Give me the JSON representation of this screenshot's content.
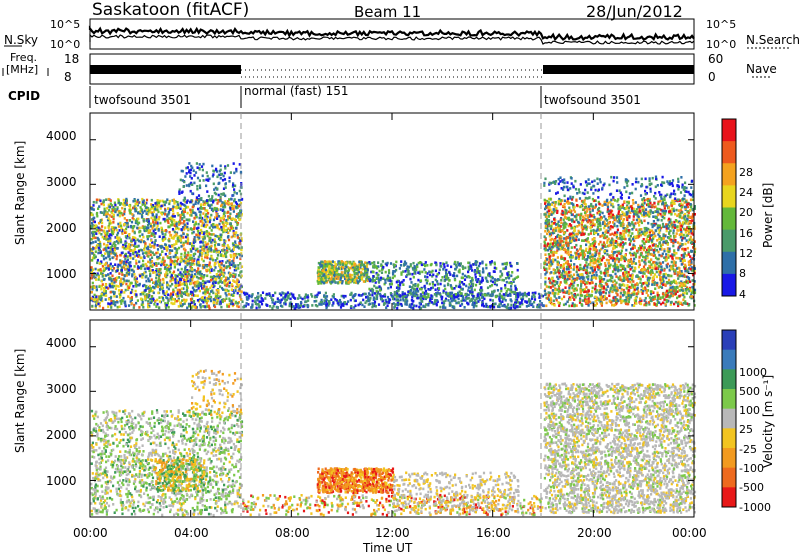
{
  "header": {
    "station": "Saskatoon (fitACF)",
    "beam": "Beam 11",
    "date": "28/Jun/2012"
  },
  "top_panels": {
    "nsky_label": "N.Sky",
    "nsky_top": "10^5",
    "nsky_bottom": "10^0",
    "nsearch_label": "N.Search",
    "nsearch_top": "10^5",
    "nsearch_bottom": "10^0",
    "freq_label": "Freq.",
    "freq_unit": "[MHz]",
    "freq_top": "18",
    "freq_bottom": "8",
    "nave_label": "Nave",
    "nave_top": "60",
    "nave_bottom": "0",
    "cpid_label": "CPID",
    "cpid_segments": [
      "twofsound 3501",
      "normal (fast) 151",
      "twofsound 3501"
    ]
  },
  "power_colorbar": {
    "label": "Power [dB]",
    "ticks": [
      "28",
      "24",
      "20",
      "16",
      "12",
      "8",
      "4"
    ],
    "colors": [
      "#e8121b",
      "#ee5a1e",
      "#f4a21f",
      "#e8d51e",
      "#63b83a",
      "#4a9a6a",
      "#2e6fa8",
      "#1919e6"
    ]
  },
  "velocity_colorbar": {
    "label": "Velocity [m s⁻¹]",
    "ticks": [
      "1000",
      "500",
      "100",
      "25",
      "-25",
      "-100",
      "-500",
      "-1000"
    ],
    "colors": [
      "#2a3fb8",
      "#3a7bbb",
      "#3c9a57",
      "#7cc94a",
      "#b8b8b8",
      "#f2c420",
      "#f29a1f",
      "#ee6a1e",
      "#e81818"
    ]
  },
  "chart_data": [
    {
      "type": "heatmap",
      "title": "",
      "xlabel": "Time UT",
      "ylabel": "Slant Range [km]",
      "x_ticks": [
        "00:00",
        "04:00",
        "08:00",
        "12:00",
        "16:00",
        "20:00",
        "00:00"
      ],
      "x_range_hours": [
        0,
        24
      ],
      "ylim": [
        180,
        4600
      ],
      "y_ticks": [
        1000,
        2000,
        3000,
        4000
      ],
      "colorbar": "Power [dB]",
      "mode_boundaries_hours": [
        6,
        18
      ],
      "regions": [
        {
          "t": [
            0,
            6
          ],
          "r": [
            250,
            2800
          ],
          "level": "mixed 4-28"
        },
        {
          "t": [
            6,
            18
          ],
          "r": [
            250,
            1300
          ],
          "level": "mixed 4-24"
        },
        {
          "t": [
            18,
            24
          ],
          "r": [
            250,
            2800
          ],
          "level": "mixed 4-28"
        }
      ]
    },
    {
      "type": "heatmap",
      "title": "",
      "xlabel": "Time UT",
      "ylabel": "Slant Range [km]",
      "x_ticks": [
        "00:00",
        "04:00",
        "08:00",
        "12:00",
        "16:00",
        "20:00",
        "00:00"
      ],
      "x_range_hours": [
        0,
        24
      ],
      "ylim": [
        180,
        4600
      ],
      "y_ticks": [
        1000,
        2000,
        3000,
        4000
      ],
      "colorbar": "Velocity [m s-1]",
      "mode_boundaries_hours": [
        6,
        18
      ],
      "regions": [
        {
          "t": [
            0,
            6
          ],
          "r": [
            250,
            2800
          ],
          "level": "mixed -100 to 100"
        },
        {
          "t": [
            9,
            12
          ],
          "r": [
            700,
            1300
          ],
          "level": "-100 to -500"
        },
        {
          "t": [
            18,
            24
          ],
          "r": [
            250,
            3200
          ],
          "level": "-25 to 25"
        }
      ]
    }
  ],
  "y_axis_label": "Slant Range [km]",
  "y_ticks": [
    "4000",
    "3000",
    "2000",
    "1000"
  ],
  "x_ticks": [
    "00:00",
    "04:00",
    "08:00",
    "12:00",
    "16:00",
    "20:00",
    "00:00"
  ],
  "x_axis_label": "Time UT"
}
